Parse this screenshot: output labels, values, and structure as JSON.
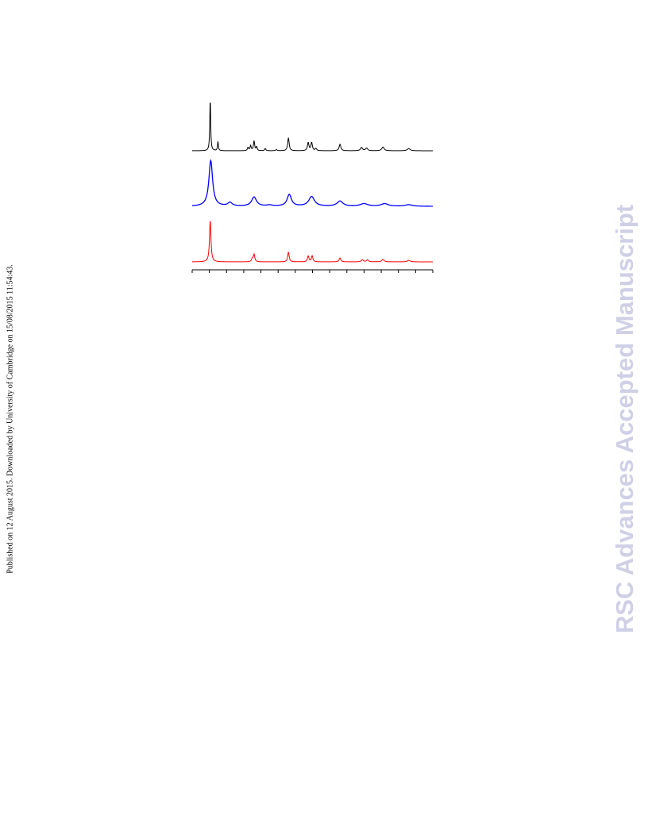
{
  "page": {
    "side_note": "Published on 12 August 2015. Downloaded by University of Cambridge on 15/08/2015 11:54:43.",
    "watermark": "RSC Advances Accepted Manuscript",
    "watermark_color": "#cfd0e6"
  },
  "chart_data": {
    "type": "line",
    "title": "",
    "xlabel": "",
    "ylabel": "",
    "x_range": [
      0,
      14
    ],
    "y_range": [
      0,
      1
    ],
    "x_ticks": [
      0,
      1,
      2,
      3,
      4,
      5,
      6,
      7,
      8,
      9,
      10,
      11,
      12,
      13,
      14
    ],
    "tick_labels_shown": false,
    "y_axis_shown": false,
    "grid": false,
    "legend": "none",
    "layout": "stacked-offset",
    "series": [
      {
        "color": "#000000",
        "peaks": [
          {
            "x": 1.05,
            "height": 0.98,
            "width": 0.03
          },
          {
            "x": 1.5,
            "height": 0.17,
            "width": 0.03
          },
          {
            "x": 3.25,
            "height": 0.06,
            "width": 0.04
          },
          {
            "x": 3.4,
            "height": 0.09,
            "width": 0.04
          },
          {
            "x": 3.6,
            "height": 0.18,
            "width": 0.04
          },
          {
            "x": 3.75,
            "height": 0.07,
            "width": 0.04
          },
          {
            "x": 4.25,
            "height": 0.04,
            "width": 0.04
          },
          {
            "x": 4.9,
            "height": 0.02,
            "width": 0.05
          },
          {
            "x": 5.6,
            "height": 0.24,
            "width": 0.05
          },
          {
            "x": 6.75,
            "height": 0.15,
            "width": 0.05
          },
          {
            "x": 6.95,
            "height": 0.15,
            "width": 0.05
          },
          {
            "x": 7.2,
            "height": 0.04,
            "width": 0.05
          },
          {
            "x": 8.6,
            "height": 0.12,
            "width": 0.06
          },
          {
            "x": 9.85,
            "height": 0.06,
            "width": 0.07
          },
          {
            "x": 10.15,
            "height": 0.05,
            "width": 0.07
          },
          {
            "x": 11.1,
            "height": 0.07,
            "width": 0.08
          },
          {
            "x": 12.6,
            "height": 0.04,
            "width": 0.1
          }
        ]
      },
      {
        "color": "#0000ff",
        "peaks": [
          {
            "x": 1.08,
            "height": 0.9,
            "width": 0.13
          },
          {
            "x": 2.2,
            "height": 0.07,
            "width": 0.15
          },
          {
            "x": 3.6,
            "height": 0.18,
            "width": 0.17
          },
          {
            "x": 4.5,
            "height": 0.02,
            "width": 0.2
          },
          {
            "x": 5.65,
            "height": 0.23,
            "width": 0.15
          },
          {
            "x": 6.95,
            "height": 0.19,
            "width": 0.2
          },
          {
            "x": 8.6,
            "height": 0.1,
            "width": 0.2
          },
          {
            "x": 10.0,
            "height": 0.05,
            "width": 0.25
          },
          {
            "x": 11.2,
            "height": 0.05,
            "width": 0.25
          },
          {
            "x": 12.6,
            "height": 0.03,
            "width": 0.25
          }
        ]
      },
      {
        "color": "#ff0000",
        "peaks": [
          {
            "x": 1.05,
            "height": 0.85,
            "width": 0.05
          },
          {
            "x": 3.5,
            "height": 0.06,
            "width": 0.05
          },
          {
            "x": 3.6,
            "height": 0.15,
            "width": 0.05
          },
          {
            "x": 5.6,
            "height": 0.2,
            "width": 0.05
          },
          {
            "x": 6.75,
            "height": 0.12,
            "width": 0.05
          },
          {
            "x": 6.98,
            "height": 0.12,
            "width": 0.05
          },
          {
            "x": 8.6,
            "height": 0.08,
            "width": 0.06
          },
          {
            "x": 9.9,
            "height": 0.04,
            "width": 0.07
          },
          {
            "x": 10.2,
            "height": 0.04,
            "width": 0.07
          },
          {
            "x": 11.1,
            "height": 0.05,
            "width": 0.08
          },
          {
            "x": 12.6,
            "height": 0.03,
            "width": 0.1
          }
        ]
      }
    ]
  }
}
